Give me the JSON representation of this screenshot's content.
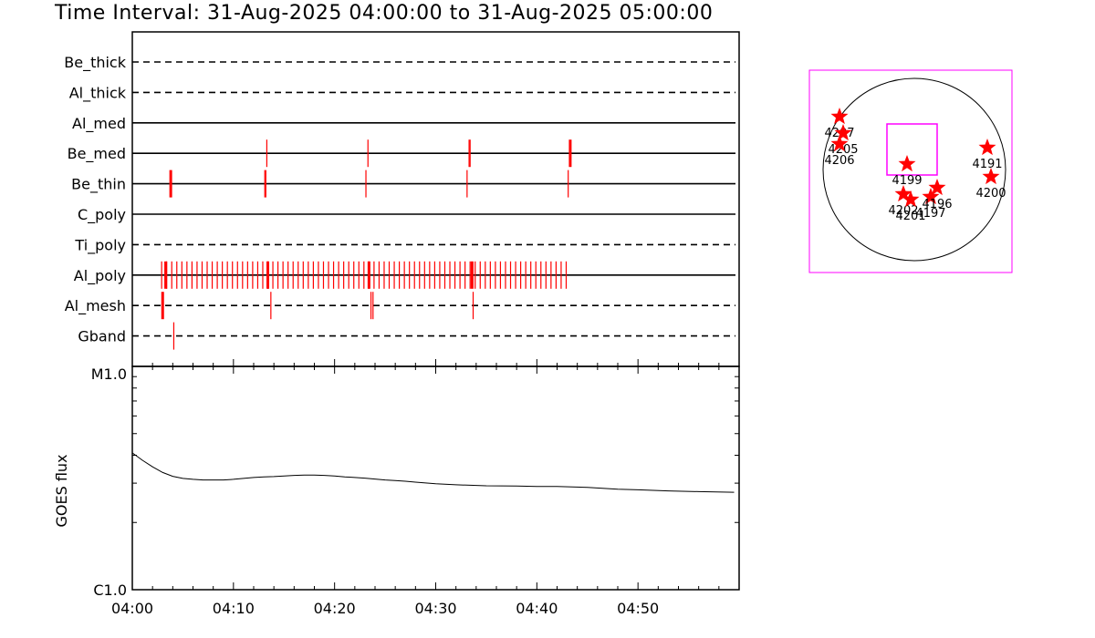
{
  "title": "Time Interval: 31-Aug-2025 04:00:00 to 31-Aug-2025 05:00:00",
  "colors": {
    "event": "#ff0000",
    "frame": "#000000",
    "fov": "#ff00ff",
    "star": "#ff0000"
  },
  "chart_data": [
    {
      "type": "timeline",
      "time_range_min": [
        0,
        60
      ],
      "rows": [
        {
          "label": "Be_thick",
          "style": "dashed",
          "events": [],
          "bold_events": []
        },
        {
          "label": "Al_thick",
          "style": "dashed",
          "events": [],
          "bold_events": []
        },
        {
          "label": "Al_med",
          "style": "solid",
          "events": [],
          "bold_events": []
        },
        {
          "label": "Be_med",
          "style": "solid",
          "events": [
            13.3,
            23.3,
            33.3,
            33.4,
            43.3
          ],
          "bold_events": [
            43.3
          ]
        },
        {
          "label": "Be_thin",
          "style": "solid",
          "events": [
            3.8,
            13.1,
            13.2,
            23.1,
            33.1,
            43.1
          ],
          "bold_events": [
            3.8
          ]
        },
        {
          "label": "C_poly",
          "style": "solid",
          "events": [],
          "bold_events": []
        },
        {
          "label": "Ti_poly",
          "style": "dashed",
          "events": [],
          "bold_events": []
        },
        {
          "label": "Al_poly",
          "style": "solid",
          "events": [],
          "bold_events": [
            3.3,
            13.4,
            23.4,
            33.6
          ],
          "dense": {
            "start": 2.9,
            "end": 43.3,
            "step": 0.5
          }
        },
        {
          "label": "Al_mesh",
          "style": "dashed",
          "events": [
            3.0,
            13.7,
            23.6,
            23.8,
            33.7
          ],
          "bold_events": [
            3.0
          ]
        },
        {
          "label": "Gband",
          "style": "dashed",
          "events": [
            4.1
          ],
          "bold_events": []
        }
      ]
    },
    {
      "type": "line",
      "xlabel": "",
      "ylabel": "GOES flux",
      "ylim_labels": [
        "C1.0",
        "M1.0"
      ],
      "ylim": [
        1e-06,
        1e-05
      ],
      "log_y": true,
      "x_ticks": [
        "04:00",
        "04:10",
        "04:20",
        "04:30",
        "04:40",
        "04:50"
      ],
      "x_tick_values": [
        0,
        10,
        20,
        30,
        40,
        50
      ],
      "x": [
        0,
        1,
        2,
        3,
        4,
        5,
        6,
        7,
        8,
        9,
        10,
        11,
        12,
        13,
        14,
        15,
        16,
        17,
        18,
        19,
        20,
        21,
        22,
        23,
        24,
        25,
        26,
        27,
        28,
        30,
        32,
        35,
        38,
        40,
        42,
        45,
        48,
        50,
        53,
        56,
        59.5
      ],
      "y": [
        4.1e-06,
        3.8e-06,
        3.55e-06,
        3.35e-06,
        3.22e-06,
        3.15e-06,
        3.12e-06,
        3.1e-06,
        3.1e-06,
        3.1e-06,
        3.12e-06,
        3.15e-06,
        3.18e-06,
        3.2e-06,
        3.21e-06,
        3.23e-06,
        3.25e-06,
        3.26e-06,
        3.26e-06,
        3.25e-06,
        3.23e-06,
        3.2e-06,
        3.18e-06,
        3.16e-06,
        3.13e-06,
        3.1e-06,
        3.08e-06,
        3.06e-06,
        3.03e-06,
        2.98e-06,
        2.95e-06,
        2.92e-06,
        2.91e-06,
        2.9e-06,
        2.9e-06,
        2.87e-06,
        2.82e-06,
        2.8e-06,
        2.77e-06,
        2.75e-06,
        2.73e-06
      ]
    },
    {
      "type": "scatter",
      "subtype": "solar_disk_active_regions",
      "points": [
        {
          "label": "4207",
          "x": -0.82,
          "y": 0.58
        },
        {
          "label": "4205",
          "x": -0.78,
          "y": 0.4
        },
        {
          "label": "4206",
          "x": -0.82,
          "y": 0.28
        },
        {
          "label": "4199",
          "x": -0.08,
          "y": 0.06
        },
        {
          "label": "4202",
          "x": -0.12,
          "y": -0.27
        },
        {
          "label": "4201",
          "x": -0.04,
          "y": -0.33
        },
        {
          "label": "4197",
          "x": 0.18,
          "y": -0.3
        },
        {
          "label": "4196",
          "x": 0.25,
          "y": -0.2
        },
        {
          "label": "4191",
          "x": 0.8,
          "y": 0.24
        },
        {
          "label": "4200",
          "x": 0.84,
          "y": -0.08
        }
      ],
      "fov": {
        "x0": -0.3,
        "x1": 0.25,
        "y0": -0.06,
        "y1": 0.5
      }
    }
  ]
}
